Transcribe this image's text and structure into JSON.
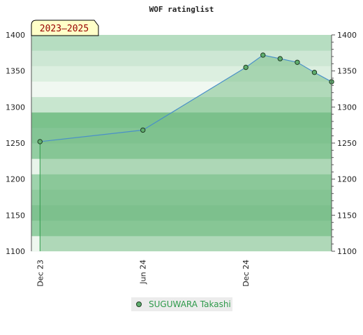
{
  "chart_data": {
    "type": "line",
    "title": "WOF ratinglist",
    "period_badge": "2023–2025",
    "x_tick_labels": [
      "Dec 23",
      "Jun 24",
      "Dec 24"
    ],
    "x_ticks": [
      0,
      6,
      12
    ],
    "xlim": [
      -0.5,
      17
    ],
    "ylim": [
      1100,
      1400
    ],
    "y_ticks": [
      1100,
      1150,
      1200,
      1250,
      1300,
      1350,
      1400
    ],
    "grid": false,
    "legend": "bottom-center",
    "series": [
      {
        "name": "SUGUWARA Takashi",
        "color": "#5fae6e",
        "x": [
          0,
          6,
          12,
          13,
          14,
          15,
          16,
          17
        ],
        "y": [
          1252,
          1268,
          1355,
          1372,
          1367,
          1362,
          1348,
          1335
        ]
      }
    ],
    "colors": {
      "line": "#4a90c8",
      "fill": "#7cc08a",
      "point": "#5fae6e",
      "badge_bg": "#ffffc8"
    }
  }
}
